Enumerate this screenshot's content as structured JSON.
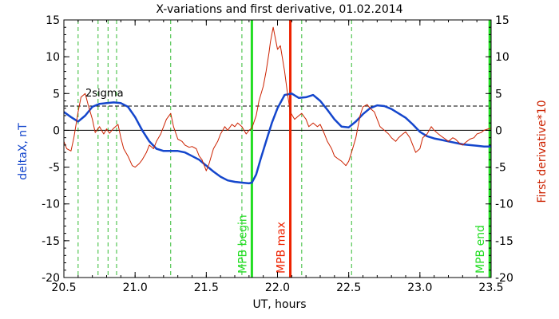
{
  "chart_data": {
    "type": "line",
    "title": "X-variations and first derivative, 01.02.2014",
    "xlabel": "UT, hours",
    "ylabel_left": "deltaX, nT",
    "ylabel_right": "First derivative*10",
    "xlim": [
      20.5,
      23.5
    ],
    "ylim": [
      -20,
      15
    ],
    "x_ticks": [
      "20.5",
      "21.0",
      "21.5",
      "22.0",
      "22.5",
      "23.0",
      "23.5"
    ],
    "y_ticks": [
      "15",
      "10",
      "5",
      "0",
      "-5",
      "-10",
      "-15",
      "-20"
    ],
    "colors": {
      "deltaX": "#1446cc",
      "derivative": "#cc2200",
      "mpb_lines": "#22dd22",
      "max_line": "#ee2200",
      "dashed_green": "#33bb33"
    },
    "sigma_level": {
      "value": 3.3,
      "label": "2sigma"
    },
    "zero_line": 0,
    "markers": [
      {
        "x": 21.82,
        "label": "MPB begin",
        "color": "#22dd22"
      },
      {
        "x": 22.09,
        "label": "MPB max",
        "color": "#ee2200"
      },
      {
        "x": 23.49,
        "label": "MPB end",
        "color": "#22dd22"
      }
    ],
    "dashed_verticals": [
      20.6,
      20.74,
      20.81,
      20.87,
      21.25,
      21.75,
      22.17,
      22.52
    ],
    "series": [
      {
        "key": "deltaX",
        "x": [
          20.5,
          20.55,
          20.6,
          20.65,
          20.7,
          20.75,
          20.8,
          20.85,
          20.9,
          20.95,
          21.0,
          21.05,
          21.1,
          21.15,
          21.2,
          21.25,
          21.3,
          21.35,
          21.4,
          21.45,
          21.5,
          21.55,
          21.6,
          21.65,
          21.7,
          21.75,
          21.8,
          21.82,
          21.85,
          21.88,
          21.92,
          21.96,
          22.0,
          22.05,
          22.1,
          22.15,
          22.2,
          22.25,
          22.3,
          22.35,
          22.4,
          22.45,
          22.5,
          22.55,
          22.6,
          22.65,
          22.7,
          22.75,
          22.8,
          22.85,
          22.9,
          22.95,
          23.0,
          23.05,
          23.1,
          23.15,
          23.2,
          23.25,
          23.3,
          23.35,
          23.4,
          23.45,
          23.5
        ],
        "y": [
          2.5,
          1.8,
          1.2,
          2.0,
          3.2,
          3.6,
          3.7,
          3.8,
          3.7,
          3.2,
          1.8,
          0.0,
          -1.5,
          -2.5,
          -2.8,
          -2.8,
          -2.8,
          -3.0,
          -3.5,
          -4.0,
          -4.8,
          -5.6,
          -6.3,
          -6.8,
          -7.0,
          -7.1,
          -7.2,
          -7.1,
          -6.0,
          -4.0,
          -1.5,
          1.0,
          3.0,
          4.8,
          5.0,
          4.4,
          4.5,
          4.8,
          4.0,
          2.8,
          1.5,
          0.5,
          0.4,
          1.2,
          2.2,
          3.0,
          3.4,
          3.3,
          2.9,
          2.3,
          1.7,
          0.8,
          -0.2,
          -0.8,
          -1.1,
          -1.3,
          -1.5,
          -1.7,
          -1.9,
          -2.0,
          -2.1,
          -2.2,
          -2.2
        ]
      },
      {
        "key": "derivative",
        "x": [
          20.5,
          20.52,
          20.55,
          20.57,
          20.6,
          20.62,
          20.65,
          20.67,
          20.7,
          20.72,
          20.75,
          20.78,
          20.8,
          20.82,
          20.85,
          20.88,
          20.9,
          20.92,
          20.95,
          20.98,
          21.0,
          21.03,
          21.05,
          21.08,
          21.1,
          21.13,
          21.15,
          21.18,
          21.2,
          21.22,
          21.25,
          21.27,
          21.3,
          21.33,
          21.35,
          21.38,
          21.4,
          21.43,
          21.45,
          21.47,
          21.5,
          21.52,
          21.55,
          21.58,
          21.6,
          21.63,
          21.65,
          21.68,
          21.7,
          21.72,
          21.75,
          21.78,
          21.8,
          21.82,
          21.85,
          21.87,
          21.9,
          21.92,
          21.94,
          21.95,
          21.97,
          22.0,
          22.02,
          22.05,
          22.07,
          22.09,
          22.12,
          22.15,
          22.17,
          22.2,
          22.22,
          22.25,
          22.28,
          22.3,
          22.33,
          22.35,
          22.38,
          22.4,
          22.42,
          22.45,
          22.48,
          22.5,
          22.52,
          22.55,
          22.58,
          22.6,
          22.63,
          22.65,
          22.68,
          22.7,
          22.72,
          22.75,
          22.78,
          22.8,
          22.83,
          22.85,
          22.88,
          22.9,
          22.93,
          22.95,
          22.97,
          23.0,
          23.02,
          23.05,
          23.08,
          23.1,
          23.13,
          23.15,
          23.18,
          23.2,
          23.23,
          23.25,
          23.28,
          23.3,
          23.33,
          23.35,
          23.38,
          23.4,
          23.43,
          23.45,
          23.48,
          23.5
        ],
        "y": [
          -1.5,
          -2.5,
          -2.8,
          -1.0,
          2.5,
          4.5,
          5.0,
          3.5,
          1.5,
          -0.3,
          0.5,
          -0.5,
          0.2,
          -0.4,
          0.3,
          0.8,
          -1.0,
          -2.5,
          -3.5,
          -4.8,
          -5.0,
          -4.5,
          -4.0,
          -3.0,
          -2.0,
          -2.5,
          -1.5,
          -0.5,
          0.5,
          1.5,
          2.3,
          0.5,
          -1.2,
          -1.5,
          -2.0,
          -2.3,
          -2.2,
          -2.5,
          -3.5,
          -4.0,
          -5.5,
          -4.5,
          -2.5,
          -1.5,
          -0.5,
          0.5,
          0.0,
          0.8,
          0.5,
          1.0,
          0.5,
          -0.5,
          0.0,
          0.3,
          2.0,
          4.0,
          6.0,
          8.0,
          10.5,
          12.0,
          14.0,
          11.0,
          11.5,
          8.0,
          5.0,
          2.5,
          1.5,
          2.0,
          2.3,
          1.5,
          0.5,
          1.0,
          0.5,
          0.8,
          -0.5,
          -1.5,
          -2.5,
          -3.5,
          -3.8,
          -4.2,
          -4.8,
          -4.2,
          -3.0,
          -1.0,
          2.0,
          3.2,
          3.5,
          3.0,
          2.5,
          1.5,
          0.5,
          0.0,
          -0.5,
          -1.0,
          -1.5,
          -1.0,
          -0.5,
          -0.2,
          -1.0,
          -2.0,
          -3.0,
          -2.5,
          -1.0,
          -0.5,
          0.5,
          0.0,
          -0.5,
          -0.8,
          -1.2,
          -1.5,
          -1.0,
          -1.2,
          -1.8,
          -2.0,
          -1.5,
          -1.2,
          -1.0,
          -0.5,
          -0.3,
          0.0,
          0.2,
          0.3
        ]
      }
    ]
  }
}
